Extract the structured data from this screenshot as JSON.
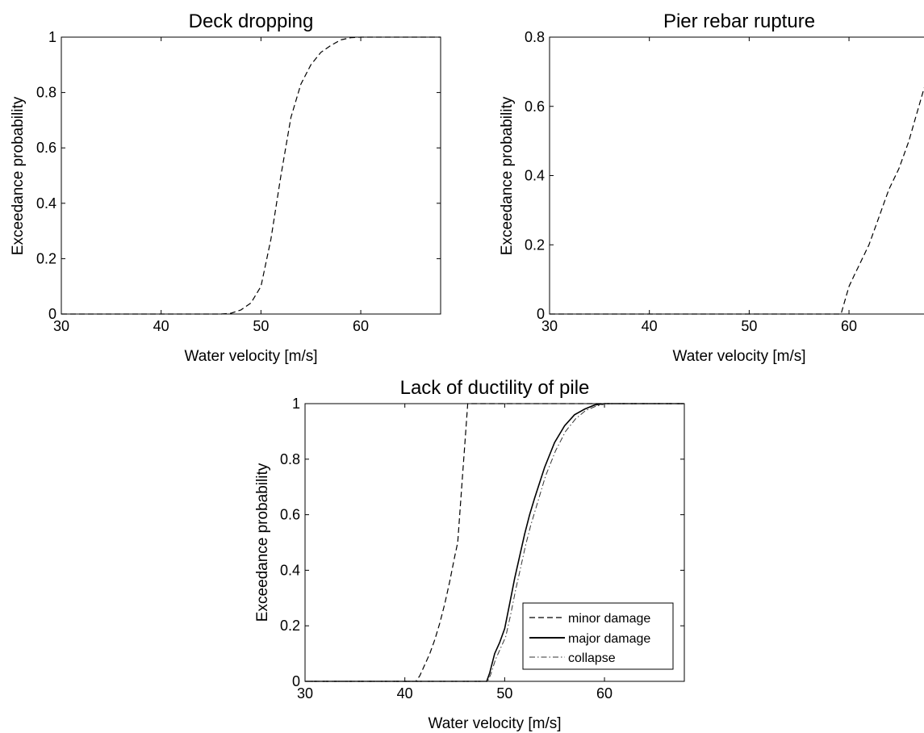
{
  "chart_data": [
    {
      "type": "line",
      "title": "Deck dropping",
      "xlabel": "Water velocity [m/s]",
      "ylabel": "Exceedance probability",
      "xlim": [
        30,
        68
      ],
      "ylim": [
        0,
        1
      ],
      "xticks": [
        "30",
        "40",
        "50",
        "60"
      ],
      "yticks": [
        "0",
        "0.2",
        "0.4",
        "0.6",
        "0.8",
        "1"
      ],
      "grid": false,
      "series": [
        {
          "style": "dashed",
          "x": [
            30,
            46,
            47,
            48,
            49,
            50,
            51,
            52,
            53,
            54,
            55,
            56,
            57,
            58,
            59,
            60,
            68
          ],
          "y": [
            0,
            0,
            0.003,
            0.015,
            0.04,
            0.1,
            0.27,
            0.5,
            0.71,
            0.83,
            0.9,
            0.945,
            0.97,
            0.99,
            0.998,
            1,
            1
          ]
        }
      ]
    },
    {
      "type": "line",
      "title": "Pier rebar rupture",
      "xlabel": "Water velocity [m/s]",
      "ylabel": "Exceedance probability",
      "xlim": [
        30,
        68
      ],
      "ylim": [
        0,
        0.8
      ],
      "xticks": [
        "30",
        "40",
        "50",
        "60"
      ],
      "yticks": [
        "0",
        "0.2",
        "0.4",
        "0.6",
        "0.8"
      ],
      "grid": false,
      "series": [
        {
          "style": "dashed",
          "x": [
            30,
            59.2,
            59.5,
            60,
            60.5,
            61,
            61.5,
            62,
            62.5,
            63,
            63.5,
            64,
            64.5,
            65,
            65.5,
            66,
            66.5,
            67,
            67.5,
            68
          ],
          "y": [
            0,
            0,
            0.03,
            0.08,
            0.11,
            0.14,
            0.17,
            0.2,
            0.24,
            0.28,
            0.32,
            0.36,
            0.39,
            0.42,
            0.46,
            0.5,
            0.55,
            0.6,
            0.65,
            0.69
          ]
        }
      ]
    },
    {
      "type": "line",
      "title": "Lack of ductility of pile",
      "xlabel": "Water velocity [m/s]",
      "ylabel": "Exceedance probability",
      "xlim": [
        30,
        68
      ],
      "ylim": [
        0,
        1
      ],
      "xticks": [
        "30",
        "40",
        "50",
        "60"
      ],
      "yticks": [
        "0",
        "0.2",
        "0.4",
        "0.6",
        "0.8",
        "1"
      ],
      "grid": false,
      "legend": "bottom-right",
      "series": [
        {
          "name": "minor damage",
          "style": "dashed",
          "x": [
            30,
            41.1,
            41.5,
            42,
            42.5,
            43,
            43.5,
            44,
            44.5,
            45,
            45.3,
            45.6,
            46,
            46.3,
            68
          ],
          "y": [
            0,
            0,
            0.02,
            0.06,
            0.1,
            0.15,
            0.21,
            0.28,
            0.36,
            0.45,
            0.5,
            0.65,
            0.85,
            1,
            1
          ]
        },
        {
          "name": "major damage",
          "style": "solid",
          "x": [
            30,
            48.2,
            48.5,
            49,
            49.5,
            50,
            50.5,
            51,
            51.5,
            52,
            52.5,
            53,
            54,
            55,
            56,
            57,
            58,
            59,
            60,
            68
          ],
          "y": [
            0,
            0,
            0.03,
            0.1,
            0.14,
            0.19,
            0.28,
            0.37,
            0.45,
            0.53,
            0.6,
            0.66,
            0.77,
            0.86,
            0.92,
            0.96,
            0.98,
            0.995,
            1,
            1
          ]
        },
        {
          "name": "collapse",
          "style": "dashdot",
          "x": [
            30,
            48.3,
            48.6,
            49.1,
            49.6,
            50.1,
            50.6,
            51.1,
            51.6,
            52.1,
            52.6,
            53.1,
            54.1,
            55.1,
            56.1,
            57.1,
            58.1,
            59.1,
            60.2,
            68
          ],
          "y": [
            0,
            0,
            0.025,
            0.08,
            0.12,
            0.16,
            0.24,
            0.33,
            0.41,
            0.49,
            0.56,
            0.62,
            0.74,
            0.83,
            0.9,
            0.945,
            0.975,
            0.99,
            1,
            1
          ]
        }
      ]
    }
  ]
}
